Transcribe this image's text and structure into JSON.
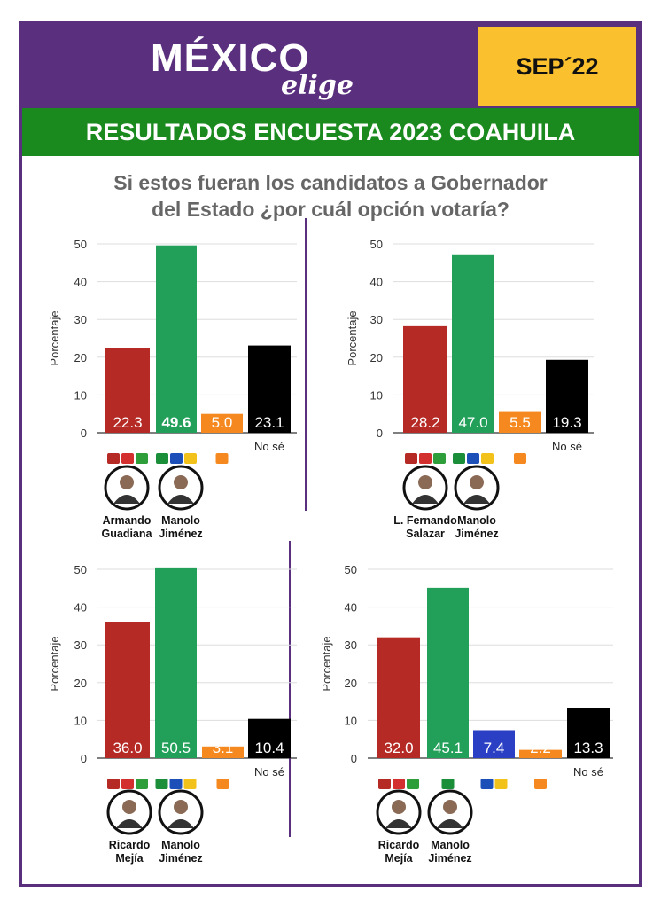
{
  "header": {
    "logo_main": "MÉXICO",
    "logo_sub": "elige",
    "date": "SEP´22",
    "title": "RESULTADOS ENCUESTA 2023 COAHUILA",
    "question_line1": "Si estos fueran los candidatos a Gobernador",
    "question_line2": "del Estado ¿por cuál opción votaría?"
  },
  "colors": {
    "purple": "#5a2f7e",
    "yellow": "#fbc02d",
    "green_banner": "#1a8a1f",
    "red": "#b52a25",
    "green": "#22a05a",
    "orange": "#f5891f",
    "blue": "#2a3fc4",
    "black": "#000000"
  },
  "chart_data": [
    {
      "type": "bar",
      "ylabel": "Porcentaje",
      "ylim": [
        0,
        50
      ],
      "yticks": [
        0,
        10,
        20,
        30,
        40,
        50
      ],
      "categories": [
        "Morena / PT / Verde",
        "PRI / PAN / PRD / UDC",
        "MC",
        "No sé"
      ],
      "values": [
        22.3,
        49.6,
        5.0,
        23.1
      ],
      "value_labels": [
        "22.3",
        "49.6",
        "5.0",
        "23.1"
      ],
      "bar_colors": [
        "#b52a25",
        "#22a05a",
        "#f5891f",
        "#000000"
      ],
      "no_se_label": "No sé",
      "candidates": [
        {
          "line1": "Armando",
          "line2": "Guadiana"
        },
        {
          "line1": "Manolo",
          "line2": "Jiménez"
        }
      ]
    },
    {
      "type": "bar",
      "ylabel": "Porcentaje",
      "ylim": [
        0,
        50
      ],
      "yticks": [
        0,
        10,
        20,
        30,
        40,
        50
      ],
      "categories": [
        "Morena / PT / Verde",
        "PRI / PAN / PRD / UDC",
        "MC",
        "No sé"
      ],
      "values": [
        28.2,
        47.0,
        5.5,
        19.3
      ],
      "value_labels": [
        "28.2",
        "47.0",
        "5.5",
        "19.3"
      ],
      "bar_colors": [
        "#b52a25",
        "#22a05a",
        "#f5891f",
        "#000000"
      ],
      "no_se_label": "No sé",
      "candidates": [
        {
          "line1": "L. Fernando",
          "line2": "Salazar"
        },
        {
          "line1": "Manolo",
          "line2": "Jiménez"
        }
      ]
    },
    {
      "type": "bar",
      "ylabel": "Porcentaje",
      "ylim": [
        0,
        50
      ],
      "yticks": [
        0,
        10,
        20,
        30,
        40,
        50
      ],
      "categories": [
        "Morena / PT / Verde",
        "PRI / PAN / PRD / UDC",
        "MC",
        "No sé"
      ],
      "values": [
        36.0,
        50.5,
        3.1,
        10.4
      ],
      "value_labels": [
        "36.0",
        "50.5",
        "3.1",
        "10.4"
      ],
      "bar_colors": [
        "#b52a25",
        "#22a05a",
        "#f5891f",
        "#000000"
      ],
      "no_se_label": "No sé",
      "candidates": [
        {
          "line1": "Ricardo",
          "line2": "Mejía"
        },
        {
          "line1": "Manolo",
          "line2": "Jiménez"
        }
      ]
    },
    {
      "type": "bar",
      "ylabel": "Porcentaje",
      "ylim": [
        0,
        50
      ],
      "yticks": [
        0,
        10,
        20,
        30,
        40,
        50
      ],
      "categories": [
        "Morena / PT / Verde",
        "PRI",
        "PAN / UDC",
        "MC",
        "No sé"
      ],
      "values": [
        32.0,
        45.1,
        7.4,
        2.2,
        13.3
      ],
      "value_labels": [
        "32.0",
        "45.1",
        "7.4",
        "2.2",
        "13.3"
      ],
      "bar_colors": [
        "#b52a25",
        "#22a05a",
        "#2a3fc4",
        "#f5891f",
        "#000000"
      ],
      "no_se_label": "No sé",
      "candidates": [
        {
          "line1": "Ricardo",
          "line2": "Mejía"
        },
        {
          "line1": "Manolo",
          "line2": "Jiménez"
        }
      ]
    }
  ]
}
